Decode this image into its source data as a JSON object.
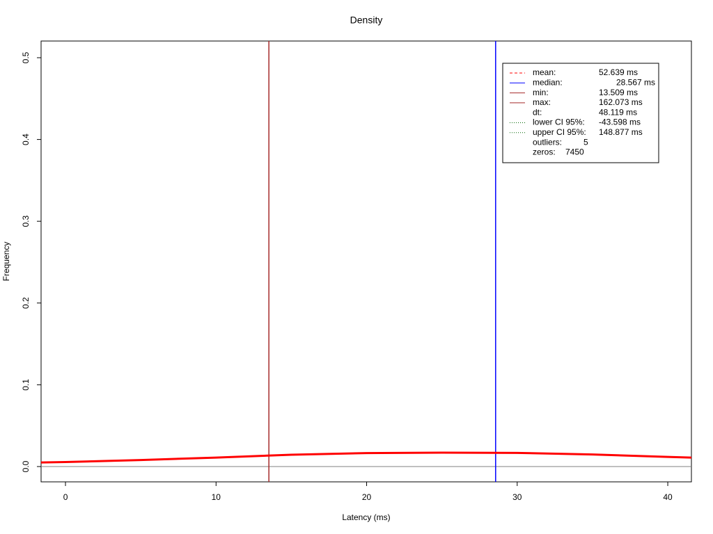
{
  "chart_data": {
    "type": "line",
    "title": "Density",
    "x_label": "Latency (ms)",
    "y_label": "Frequency",
    "xlim": [
      -1.62,
      41.57
    ],
    "xticks": [
      0,
      10,
      20,
      30,
      40
    ],
    "ylim": [
      -0.0187,
      0.5204
    ],
    "yticks": [
      {
        "value": 0,
        "label": "0.0"
      },
      0.1,
      0.2,
      0.3,
      0.4,
      0.5
    ],
    "series": [
      {
        "color": "#ff0000",
        "x": [
          -1.62,
          0,
          5,
          10,
          15,
          20,
          25,
          30,
          35,
          40,
          41.57
        ],
        "values": [
          0.005,
          0.0055,
          0.008,
          0.011,
          0.0145,
          0.0165,
          0.017,
          0.0167,
          0.0148,
          0.0118,
          0.011
        ]
      }
    ],
    "vlines": [
      {
        "x": 13.509,
        "color": "#a52a2a"
      },
      {
        "x": 28.567,
        "color": "#0000ff"
      }
    ],
    "hline": {
      "y": 0,
      "color": "#808080"
    },
    "legend": [
      {
        "label": "mean:",
        "value": "52.639 ms",
        "color": "#ff0000",
        "dash": "4,3"
      },
      {
        "label": "median:",
        "value": "28.567 ms",
        "color": "#0000ff",
        "dash": "none"
      },
      {
        "label": "min:",
        "value": "13.509 ms",
        "color": "#a52a2a",
        "dash": "none"
      },
      {
        "label": "max:",
        "value": "162.073 ms",
        "color": "#a52a2a",
        "dash": "none"
      },
      {
        "label": "dt:",
        "value": "48.119 ms"
      },
      {
        "label": "lower CI 95%:",
        "value": "-43.598 ms",
        "color": "#006400",
        "dash": "1,2"
      },
      {
        "label": "upper CI 95%:",
        "value": "148.877 ms",
        "color": "#006400",
        "dash": "1,2"
      },
      {
        "label": "outliers:",
        "value": "5"
      },
      {
        "label": "zeros:",
        "value": "7450"
      }
    ]
  }
}
